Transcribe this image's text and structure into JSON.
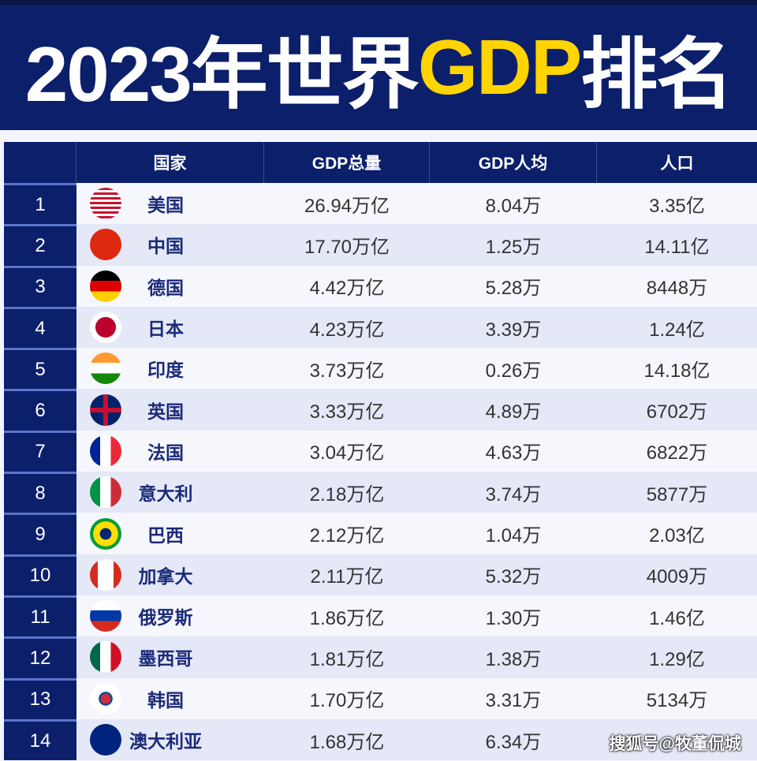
{
  "title": {
    "prefix": "2023年世界",
    "highlight": "GDP",
    "suffix": "排名"
  },
  "colors": {
    "header_bg": "#0c1f6b",
    "highlight": "#ffd400"
  },
  "table": {
    "headers": [
      "",
      "国家",
      "GDP总量",
      "GDP人均",
      "人口"
    ],
    "rows": [
      {
        "rank": "1",
        "country": "美国",
        "flag": "usa-flag",
        "gdp": "26.94万亿",
        "per_capita": "8.04万",
        "population": "3.35亿"
      },
      {
        "rank": "2",
        "country": "中国",
        "flag": "china-flag",
        "gdp": "17.70万亿",
        "per_capita": "1.25万",
        "population": "14.11亿"
      },
      {
        "rank": "3",
        "country": "德国",
        "flag": "germany-flag",
        "gdp": "4.42万亿",
        "per_capita": "5.28万",
        "population": "8448万"
      },
      {
        "rank": "4",
        "country": "日本",
        "flag": "japan-flag",
        "gdp": "4.23万亿",
        "per_capita": "3.39万",
        "population": "1.24亿"
      },
      {
        "rank": "5",
        "country": "印度",
        "flag": "india-flag",
        "gdp": "3.73万亿",
        "per_capita": "0.26万",
        "population": "14.18亿"
      },
      {
        "rank": "6",
        "country": "英国",
        "flag": "uk-flag",
        "gdp": "3.33万亿",
        "per_capita": "4.89万",
        "population": "6702万"
      },
      {
        "rank": "7",
        "country": "法国",
        "flag": "france-flag",
        "gdp": "3.04万亿",
        "per_capita": "4.63万",
        "population": "6822万"
      },
      {
        "rank": "8",
        "country": "意大利",
        "flag": "italy-flag",
        "gdp": "2.18万亿",
        "per_capita": "3.74万",
        "population": "5877万"
      },
      {
        "rank": "9",
        "country": "巴西",
        "flag": "brazil-flag",
        "gdp": "2.12万亿",
        "per_capita": "1.04万",
        "population": "2.03亿"
      },
      {
        "rank": "10",
        "country": "加拿大",
        "flag": "canada-flag",
        "gdp": "2.11万亿",
        "per_capita": "5.32万",
        "population": "4009万"
      },
      {
        "rank": "11",
        "country": "俄罗斯",
        "flag": "russia-flag",
        "gdp": "1.86万亿",
        "per_capita": "1.30万",
        "population": "1.46亿"
      },
      {
        "rank": "12",
        "country": "墨西哥",
        "flag": "mexico-flag",
        "gdp": "1.81万亿",
        "per_capita": "1.38万",
        "population": "1.29亿"
      },
      {
        "rank": "13",
        "country": "韩国",
        "flag": "korea-flag",
        "gdp": "1.70万亿",
        "per_capita": "3.31万",
        "population": "5134万"
      },
      {
        "rank": "14",
        "country": "澳大利亚",
        "flag": "australia-flag",
        "gdp": "1.68万亿",
        "per_capita": "6.34万",
        "population": ""
      }
    ]
  },
  "watermark": "搜狐号@牧董侃城"
}
